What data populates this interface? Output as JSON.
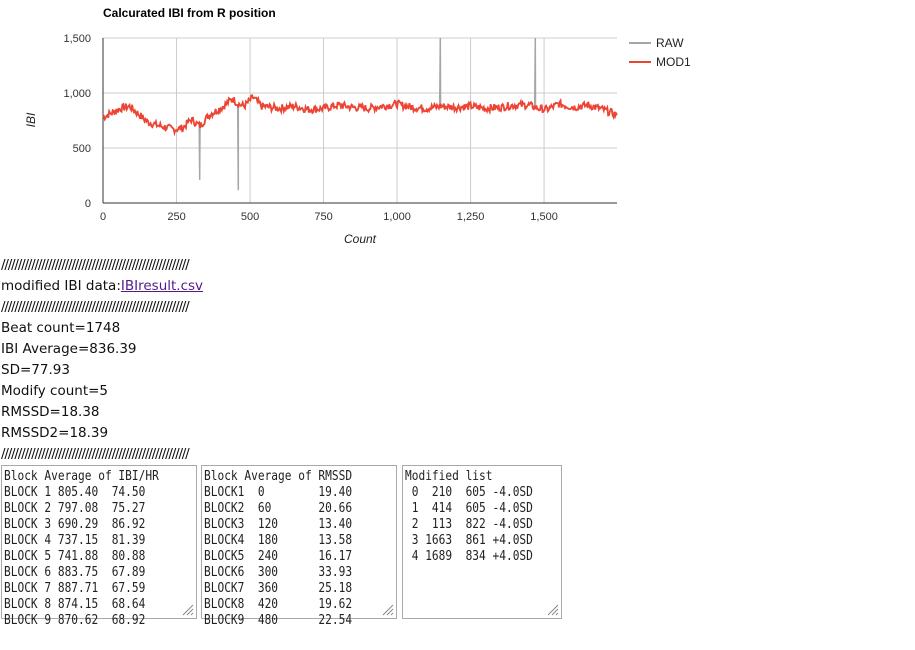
{
  "chart_data": {
    "type": "line",
    "title": "Calcurated IBI from R position",
    "xlabel": "Count",
    "ylabel": "IBI",
    "xlim": [
      0,
      1748
    ],
    "ylim": [
      0,
      1500
    ],
    "x_ticks": [
      0,
      250,
      500,
      750,
      1000,
      1250,
      1500
    ],
    "x_tick_labels": [
      "0",
      "250",
      "500",
      "750",
      "1,000",
      "1,250",
      "1,500"
    ],
    "y_ticks": [
      0,
      500,
      1000,
      1500
    ],
    "y_tick_labels": [
      "0",
      "500",
      "1,000",
      "1,500"
    ],
    "grid": true,
    "legend_position": "right",
    "series": [
      {
        "name": "RAW",
        "color": "#a6a6a6",
        "spikes": [
          [
            329,
            210
          ],
          [
            460,
            115
          ],
          [
            1147,
            1500
          ],
          [
            1470,
            1500
          ]
        ]
      },
      {
        "name": "MOD1",
        "color": "#ee4433",
        "x": [
          0,
          30,
          60,
          90,
          120,
          150,
          180,
          210,
          240,
          270,
          300,
          330,
          360,
          380,
          410,
          440,
          460,
          480,
          510,
          540,
          570,
          600,
          650,
          700,
          750,
          800,
          850,
          900,
          950,
          1000,
          1050,
          1100,
          1150,
          1200,
          1250,
          1300,
          1350,
          1400,
          1450,
          1480,
          1510,
          1550,
          1600,
          1650,
          1700,
          1748
        ],
        "y": [
          780,
          820,
          860,
          880,
          810,
          740,
          710,
          690,
          670,
          680,
          760,
          700,
          800,
          830,
          880,
          950,
          900,
          880,
          960,
          880,
          870,
          860,
          880,
          850,
          860,
          890,
          870,
          860,
          880,
          900,
          870,
          860,
          880,
          870,
          880,
          860,
          870,
          890,
          890,
          860,
          850,
          900,
          870,
          890,
          850,
          800
        ]
      }
    ]
  },
  "links": {
    "separator": "////////////////////////////////////////////////////////",
    "modified_label": "modified IBI data:",
    "modified_file": "IBIresult.csv"
  },
  "stats": {
    "beat_count": "Beat count=1748",
    "ibi_average": "IBI Average=836.39",
    "sd": "SD=77.93",
    "modify_count": "Modify count=5",
    "rmssd": "RMSSD=18.38",
    "rmssd2": "RMSSD2=18.39"
  },
  "textareas": {
    "block_ibi_hr": [
      "Block Average of IBI/HR",
      "BLOCK 1 805.40  74.50",
      "BLOCK 2 797.08  75.27",
      "BLOCK 3 690.29  86.92",
      "BLOCK 4 737.15  81.39",
      "BLOCK 5 741.88  80.88",
      "BLOCK 6 883.75  67.89",
      "BLOCK 7 887.71  67.59",
      "BLOCK 8 874.15  68.64",
      "BLOCK 9 870.62  68.92"
    ],
    "block_rmssd": [
      "Block Average of RMSSD",
      "BLOCK1  0        19.40",
      "BLOCK2  60       20.66",
      "BLOCK3  120      13.40",
      "BLOCK4  180      13.58",
      "BLOCK5  240      16.17",
      "BLOCK6  300      33.93",
      "BLOCK7  360      25.18",
      "BLOCK8  420      19.62",
      "BLOCK9  480      22.54"
    ],
    "modified_list": [
      "Modified list",
      " 0  210  605 -4.0SD",
      " 1  414  605 -4.0SD",
      " 2  113  822 -4.0SD",
      " 3 1663  861 +4.0SD",
      " 4 1689  834 +4.0SD"
    ]
  }
}
